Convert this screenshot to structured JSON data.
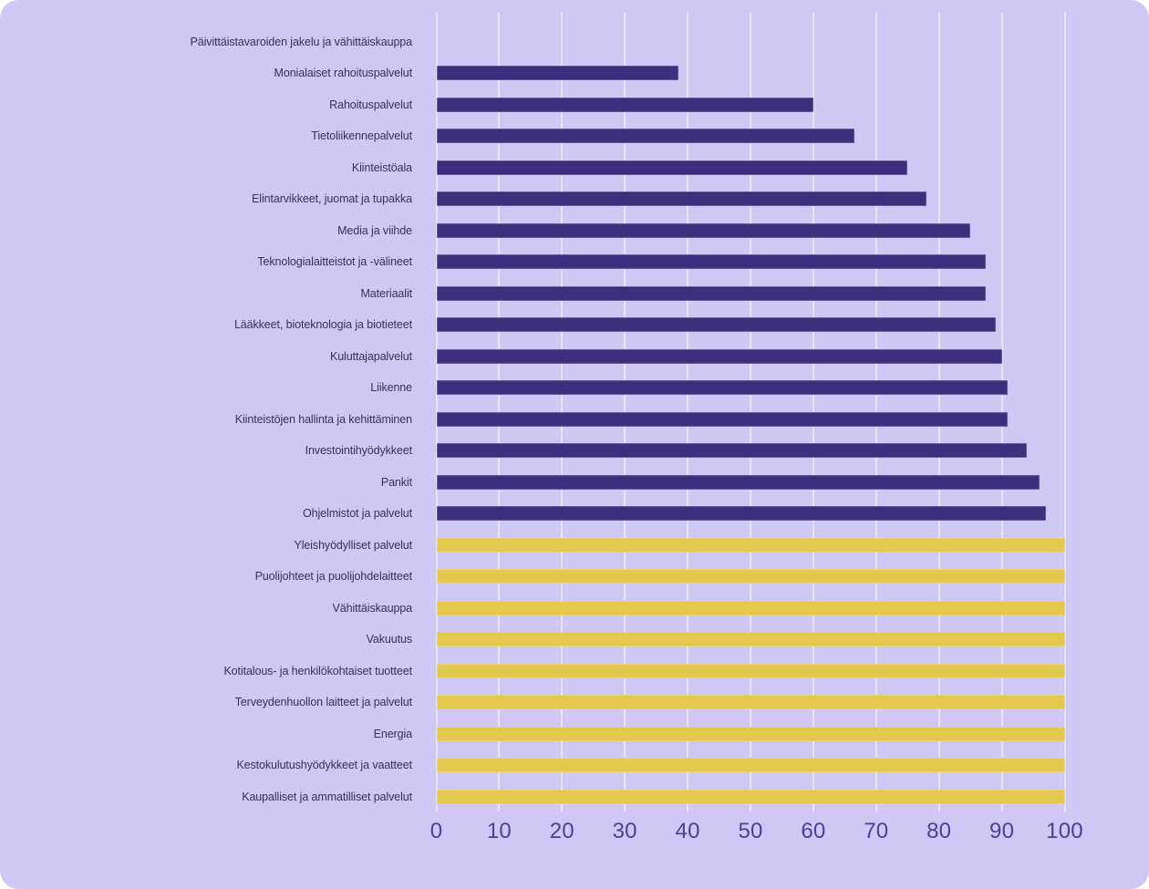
{
  "chart_data": {
    "type": "bar",
    "orientation": "horizontal",
    "title": "",
    "xlabel": "",
    "ylabel": "",
    "legend": "none",
    "grid": "vertical",
    "x_ticks": [
      0,
      10,
      20,
      30,
      40,
      50,
      60,
      70,
      80,
      90,
      100
    ],
    "xlim": [
      0,
      110.6
    ],
    "categories": [
      "Päivittäistavaroiden jakelu ja vähittäiskauppa",
      "Monialaiset rahoituspalvelut",
      "Rahoituspalvelut",
      "Tietoliikennepalvelut",
      "Kiinteistöala",
      "Elintarvikkeet, juomat ja tupakka",
      "Media ja viihde",
      "Teknologialaitteistot ja -välineet",
      "Materiaalit",
      "Lääkkeet, bioteknologia ja biotieteet",
      "Kuluttajapalvelut",
      "Liikenne",
      "Kiinteistöjen hallinta ja kehittäminen",
      "Investointihyödykkeet",
      "Pankit",
      "Ohjelmistot ja palvelut",
      "Yleishyödylliset palvelut",
      "Puolijohteet ja puolijohdelaitteet",
      "Vähittäiskauppa",
      "Vakuutus",
      "Kotitalous- ja henkilökohtaiset tuotteet",
      "Terveydenhuollon laitteet ja palvelut",
      "Energia",
      "Kestokulutushyödykkeet ja vaatteet",
      "Kaupalliset ja ammatilliset palvelut"
    ],
    "values": [
      0,
      38.5,
      60,
      66.5,
      75,
      78,
      85,
      87.5,
      87.5,
      89,
      90,
      91,
      91,
      94,
      96,
      97,
      100,
      100,
      100,
      100,
      100,
      100,
      100,
      100,
      100
    ],
    "bar_color_keys": [
      "purple",
      "purple",
      "purple",
      "purple",
      "purple",
      "purple",
      "purple",
      "purple",
      "purple",
      "purple",
      "purple",
      "purple",
      "purple",
      "purple",
      "purple",
      "purple",
      "yellow",
      "yellow",
      "yellow",
      "yellow",
      "yellow",
      "yellow",
      "yellow",
      "yellow",
      "yellow"
    ]
  },
  "style": {
    "panel_background": "#cfc8f4",
    "bar_purple": "#3d2e7e",
    "bar_yellow": "#e4c74d",
    "gridline_color": "rgba(255,255,255,0.5)",
    "tick_label_color": "#4c3f94",
    "category_label_color": "#35305f"
  }
}
